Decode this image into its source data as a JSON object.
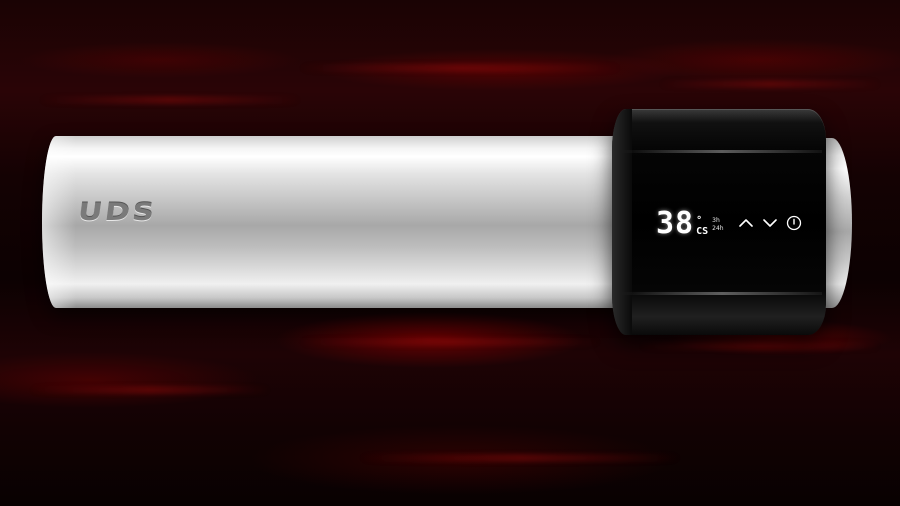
{
  "brand": {
    "logo_text": "UDS"
  },
  "display": {
    "temperature": "38",
    "unit_top": "°",
    "unit_bottom": "CS",
    "mini_top": "3h",
    "mini_bottom": "24h"
  },
  "controls": {
    "up_icon": "chevron-up-icon",
    "down_icon": "chevron-down-icon",
    "power_icon": "power-icon"
  },
  "colors": {
    "background_glow": "#8a0000",
    "silver_body": "#d0d0d0",
    "control_ring": "#000000",
    "display_text": "#ffffff"
  }
}
